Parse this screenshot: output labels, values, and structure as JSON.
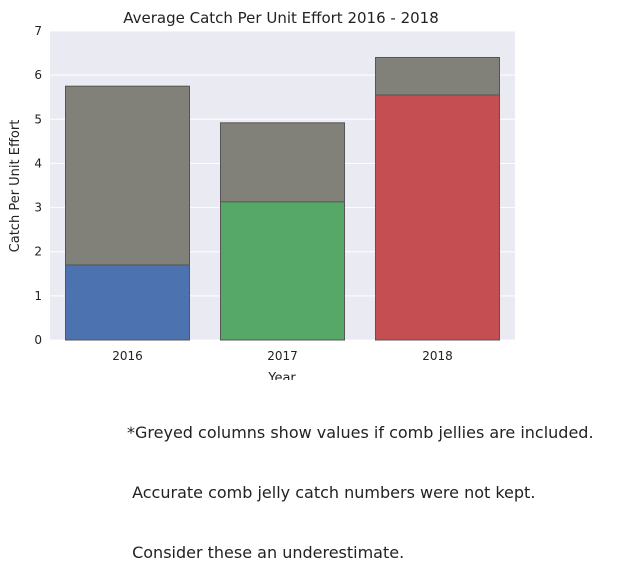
{
  "chart_data": {
    "type": "bar",
    "title": "Average Catch Per Unit Effort 2016 - 2018",
    "xlabel": "Year",
    "ylabel": "Catch Per Unit Effort",
    "categories": [
      "2016",
      "2017",
      "2018"
    ],
    "ylim": [
      0,
      7
    ],
    "yticks": [
      "0",
      "1",
      "2",
      "3",
      "4",
      "5",
      "6",
      "7"
    ],
    "grid": true,
    "series": [
      {
        "values": [
          5.75,
          4.92,
          6.4
        ],
        "colors": [
          "#818179",
          "#818179",
          "#818179"
        ]
      },
      {
        "values": [
          1.7,
          3.13,
          5.55
        ],
        "colors": [
          "#4c72b0",
          "#55a868",
          "#c44e52"
        ]
      }
    ]
  },
  "footnote": {
    "lines": [
      "*Greyed columns show values if comb jellies are included.",
      " Accurate comb jelly catch numbers were not kept.",
      " Consider these an underestimate."
    ]
  },
  "colors": {
    "plot_background": "#eaeaf2",
    "grid": "#ffffff",
    "bar_edge": "#555555"
  }
}
